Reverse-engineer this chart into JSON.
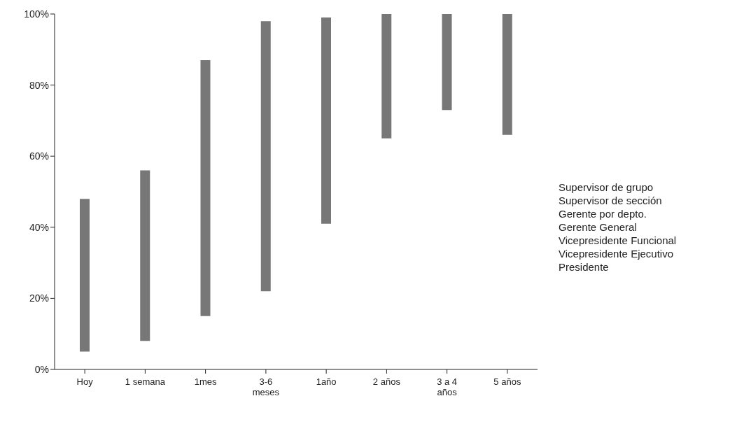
{
  "chart_data": {
    "type": "bar",
    "categories": [
      "Hoy",
      "1 semana",
      "1mes",
      "3-6 meses",
      "1año",
      "2 años",
      "3 a 4 años",
      "5 años"
    ],
    "base": [
      5,
      8,
      15,
      22,
      41,
      65,
      73,
      66
    ],
    "values": [
      43,
      48,
      72,
      76,
      58,
      35,
      27,
      34
    ],
    "color": "#777777",
    "ylim": [
      0,
      100
    ],
    "yticks": [
      {
        "value": 0,
        "label": "0%"
      },
      {
        "value": 20,
        "label": "20%"
      },
      {
        "value": 40,
        "label": "40%"
      },
      {
        "value": 60,
        "label": "60%"
      },
      {
        "value": 80,
        "label": "80%"
      },
      {
        "value": 100,
        "label": "100%"
      }
    ],
    "grid": false,
    "annotations": [
      "Supervisor de grupo",
      "Supervisor de sección",
      "Gerente por depto.",
      "Gerente General",
      "Vicepresidente Funcional",
      "Vicepresidente Ejecutivo",
      "Presidente"
    ]
  }
}
